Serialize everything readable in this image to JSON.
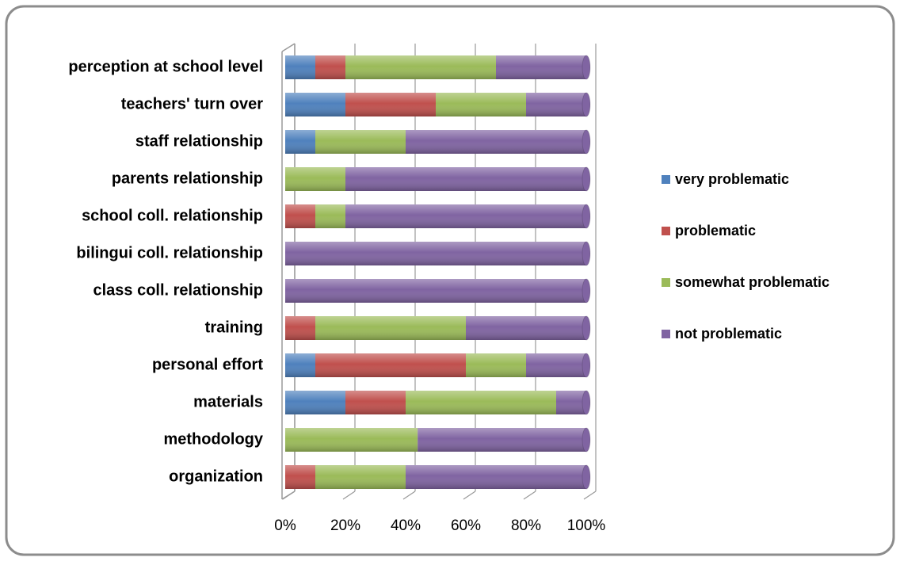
{
  "chart_data": {
    "type": "bar",
    "orientation": "horizontal",
    "stacked": true,
    "categories": [
      "perception at school level",
      "teachers' turn over",
      "staff relationship",
      "parents relationship",
      "school coll. relationship",
      "bilingui coll. relationship",
      "class coll. relationship",
      "training",
      "personal effort",
      "materials",
      "methodology",
      "organization"
    ],
    "series": [
      {
        "name": "very problematic",
        "color": "#4f81bd",
        "values": [
          10,
          20,
          10,
          0,
          0,
          0,
          0,
          0,
          10,
          20,
          0,
          0
        ]
      },
      {
        "name": "problematic",
        "color": "#c0504d",
        "values": [
          10,
          30,
          0,
          0,
          10,
          0,
          0,
          10,
          50,
          20,
          0,
          10
        ]
      },
      {
        "name": "somewhat problematic",
        "color": "#9bbb59",
        "values": [
          50,
          30,
          30,
          20,
          10,
          0,
          0,
          50,
          20,
          50,
          44,
          30
        ]
      },
      {
        "name": "not problematic",
        "color": "#8064a2",
        "values": [
          30,
          20,
          60,
          80,
          80,
          100,
          100,
          40,
          20,
          10,
          56,
          60
        ]
      }
    ],
    "xlim": [
      0,
      100
    ],
    "xticks": [
      {
        "value": 0,
        "label": "0%"
      },
      {
        "value": 20,
        "label": "20%"
      },
      {
        "value": 40,
        "label": "40%"
      },
      {
        "value": 60,
        "label": "60%"
      },
      {
        "value": 80,
        "label": "80%"
      },
      {
        "value": 100,
        "label": "100%"
      }
    ],
    "grid": true,
    "legend": "right"
  }
}
